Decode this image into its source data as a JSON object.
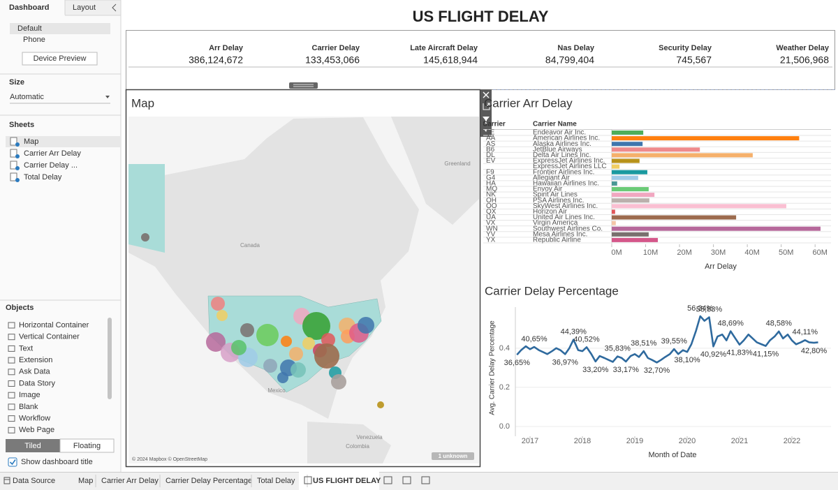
{
  "sidebar": {
    "tabs": [
      "Dashboard",
      "Layout"
    ],
    "device_options": [
      "Default",
      "Phone"
    ],
    "device_preview": "Device Preview",
    "size_label": "Size",
    "size_value": "Automatic",
    "sheets_label": "Sheets",
    "sheets": [
      "Map",
      "Carrier Arr Delay",
      "Carrier Delay ...",
      "Total Delay"
    ],
    "objects_label": "Objects",
    "objects": [
      "Horizontal Container",
      "Vertical Container",
      "Text",
      "Extension",
      "Ask Data",
      "Data Story",
      "Image",
      "Blank",
      "Workflow",
      "Web Page"
    ],
    "layout_modes": [
      "Tiled",
      "Floating"
    ],
    "show_title": "Show dashboard title"
  },
  "dashboard": {
    "title": "US FLIGHT DELAY",
    "kpis": [
      {
        "label": "Arr Delay",
        "value": "386,124,672"
      },
      {
        "label": "Carrier Delay",
        "value": "133,453,066"
      },
      {
        "label": "Late Aircraft Delay",
        "value": "145,618,944"
      },
      {
        "label": "Nas Delay",
        "value": "84,799,404"
      },
      {
        "label": "Security Delay",
        "value": "745,567"
      },
      {
        "label": "Weather Delay",
        "value": "21,506,968"
      }
    ]
  },
  "map": {
    "title": "Map",
    "labels": [
      "Canada",
      "Mexico",
      "Greenland",
      "Venezuela",
      "Colombia"
    ],
    "attribution": "© 2024 Mapbox © OpenStreetMap",
    "unknown": "1 unknown"
  },
  "chart_data": [
    {
      "type": "bar",
      "title": "Carrier Arr Delay",
      "column_headers": [
        "Carrier",
        "Carrier Name"
      ],
      "codes": [
        "9E",
        "AA",
        "AS",
        "B6",
        "DL",
        "EV",
        null,
        "F9",
        "G4",
        "HA",
        "MQ",
        "NK",
        "OH",
        "OO",
        "QX",
        "UA",
        "VX",
        "WN",
        "YV",
        "YX"
      ],
      "categories": [
        "Endeavor Air Inc.",
        "American Airlines Inc.",
        "Alaska Airlines Inc.",
        "JetBlue Airways",
        "Delta Air Lines Inc.",
        "ExpressJet Airlines Inc.",
        "ExpressJet Airlines LLC",
        "Frontier Airlines Inc.",
        "Allegiant Air",
        "Hawaiian Airlines Inc.",
        "Envoy Air",
        "Spirit Air Lines",
        "PSA Airlines Inc.",
        "SkyWest Airlines Inc.",
        "Horizon Air",
        "United Air Lines Inc.",
        "Virgin America",
        "Southwest Airlines Co.",
        "Mesa Airlines Inc.",
        "Republic Airline"
      ],
      "values": [
        9300000,
        55300000,
        9100000,
        26000000,
        41600000,
        8200000,
        2300000,
        10500000,
        7800000,
        1600000,
        10900000,
        12600000,
        11100000,
        51500000,
        1000000,
        36700000,
        1200000,
        61600000,
        10900000,
        13600000
      ],
      "colors": [
        "#4fae5a",
        "#ff7f0e",
        "#3f76ad",
        "#ef8a8c",
        "#f5b06b",
        "#b8921a",
        "#f1ce63",
        "#1a9aa0",
        "#a0cbe8",
        "#499894",
        "#6bcb77",
        "#f1a7c0",
        "#bab0ac",
        "#fabfd2",
        "#e15759",
        "#9c6b4e",
        "#f4c6a8",
        "#b6689b",
        "#79706e",
        "#d4578a"
      ],
      "xlabel": "Arr Delay",
      "xlim": [
        0,
        64700000
      ],
      "xticks": [
        {
          "value": 0,
          "label": "0M"
        },
        {
          "value": 10000000,
          "label": "10M"
        },
        {
          "value": 20000000,
          "label": "20M"
        },
        {
          "value": 30000000,
          "label": "30M"
        },
        {
          "value": 40000000,
          "label": "40M"
        },
        {
          "value": 50000000,
          "label": "50M"
        },
        {
          "value": 60000000,
          "label": "60M"
        }
      ]
    },
    {
      "type": "line",
      "title": "Carrier Delay Percentage",
      "xlabel": "Month of Date",
      "ylabel": "Avg. Carrier Delay Percentage",
      "color": "#2f6a9e",
      "grid": true,
      "x": [
        2016.75,
        2016.83,
        2016.92,
        2017,
        2017.08,
        2017.17,
        2017.25,
        2017.33,
        2017.42,
        2017.5,
        2017.58,
        2017.67,
        2017.75,
        2017.83,
        2017.92,
        2018,
        2018.08,
        2018.17,
        2018.25,
        2018.33,
        2018.42,
        2018.5,
        2018.58,
        2018.67,
        2018.75,
        2018.83,
        2018.92,
        2019,
        2019.08,
        2019.17,
        2019.25,
        2019.33,
        2019.42,
        2019.5,
        2019.58,
        2019.67,
        2019.75,
        2019.83,
        2019.92,
        2020,
        2020.08,
        2020.17,
        2020.25,
        2020.33,
        2020.42,
        2020.5,
        2020.58,
        2020.67,
        2020.75,
        2020.83,
        2020.92,
        2021,
        2021.08,
        2021.17,
        2021.25,
        2021.33,
        2021.42,
        2021.5,
        2021.58,
        2021.67,
        2021.75,
        2021.83,
        2021.92,
        2022,
        2022.08,
        2022.17,
        2022.25,
        2022.33,
        2022.42,
        2022.5
      ],
      "values": [
        0.3665,
        0.39,
        0.41,
        0.395,
        0.4065,
        0.39,
        0.38,
        0.37,
        0.385,
        0.4,
        0.39,
        0.3697,
        0.4,
        0.4439,
        0.39,
        0.385,
        0.4052,
        0.37,
        0.332,
        0.36,
        0.35,
        0.34,
        0.33,
        0.3583,
        0.35,
        0.3317,
        0.36,
        0.37,
        0.355,
        0.3851,
        0.35,
        0.34,
        0.327,
        0.34,
        0.355,
        0.37,
        0.3955,
        0.37,
        0.39,
        0.381,
        0.42,
        0.49,
        0.5634,
        0.54,
        0.5583,
        0.4092,
        0.46,
        0.47,
        0.44,
        0.4869,
        0.45,
        0.4183,
        0.44,
        0.47,
        0.45,
        0.43,
        0.42,
        0.4115,
        0.44,
        0.46,
        0.4858,
        0.45,
        0.47,
        0.44,
        0.42,
        0.43,
        0.4411,
        0.43,
        0.428,
        0.43
      ],
      "value_labels": [
        "36,65%",
        null,
        null,
        null,
        "40,65%",
        null,
        null,
        null,
        null,
        null,
        null,
        "36,97%",
        null,
        "44,39%",
        null,
        null,
        "40,52%",
        null,
        "33,20%",
        null,
        null,
        null,
        null,
        "35,83%",
        null,
        "33,17%",
        null,
        null,
        null,
        "38,51%",
        null,
        null,
        "32,70%",
        null,
        null,
        null,
        "39,55%",
        null,
        null,
        "38,10%",
        null,
        null,
        "56,34%",
        null,
        "55,83%",
        "40,92%",
        null,
        null,
        null,
        "48,69%",
        null,
        "41,83%",
        null,
        null,
        null,
        null,
        null,
        "41,15%",
        null,
        null,
        "48,58%",
        null,
        null,
        null,
        null,
        null,
        "44,11%",
        null,
        "42,80%",
        null
      ],
      "xlim": [
        2016.72,
        2022.7
      ],
      "xticks": [
        2017,
        2018,
        2019,
        2020,
        2021,
        2022
      ],
      "ylim": [
        -0.05,
        0.61
      ],
      "yticks": [
        {
          "value": 0,
          "label": "0.0"
        },
        {
          "value": 0.2,
          "label": "0.2"
        },
        {
          "value": 0.4,
          "label": "0.4"
        }
      ]
    }
  ],
  "bottom_tabs": [
    "Data Source",
    "Map",
    "Carrier Arr Delay",
    "Carrier Delay Percentage",
    "Total Delay",
    "US FLIGHT DELAY"
  ]
}
